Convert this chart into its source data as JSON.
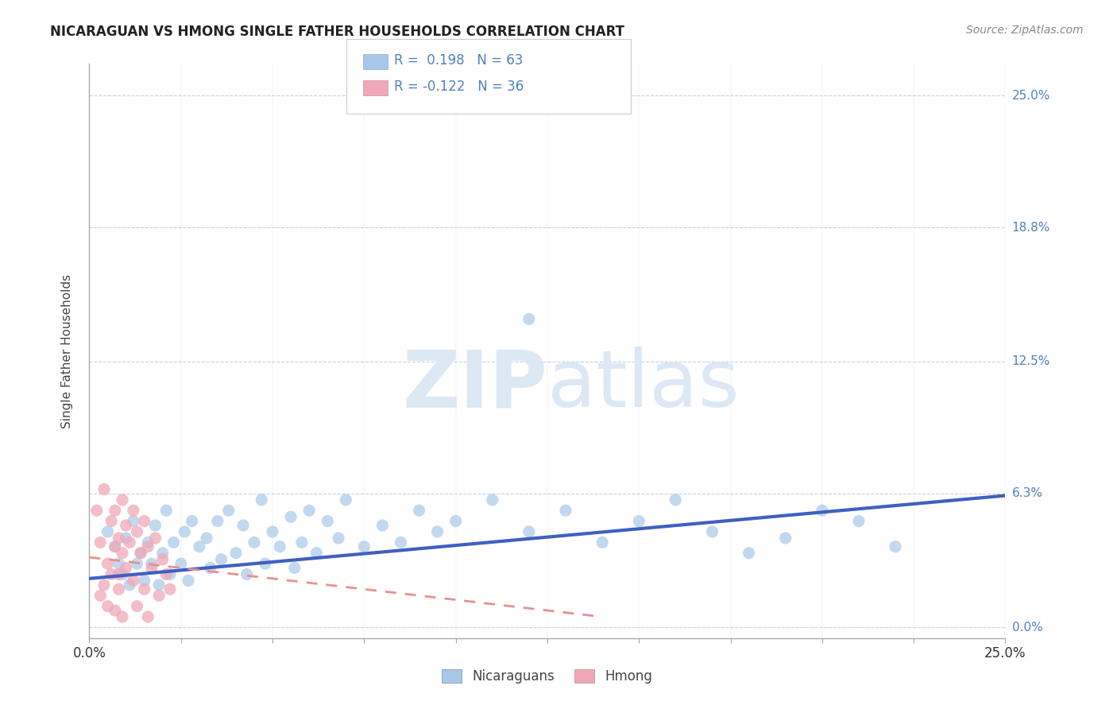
{
  "title": "NICARAGUAN VS HMONG SINGLE FATHER HOUSEHOLDS CORRELATION CHART",
  "source": "Source: ZipAtlas.com",
  "ylabel": "Single Father Households",
  "y_ticks": [
    0.0,
    0.063,
    0.125,
    0.188,
    0.25
  ],
  "y_tick_labels": [
    "0.0%",
    "6.3%",
    "12.5%",
    "18.8%",
    "25.0%"
  ],
  "x_range": [
    0.0,
    0.25
  ],
  "y_range": [
    -0.005,
    0.265
  ],
  "legend_R1": "0.198",
  "legend_N1": "63",
  "legend_R2": "-0.122",
  "legend_N2": "36",
  "legend_labels": [
    "Nicaraguans",
    "Hmong"
  ],
  "nicaraguan_color": "#a8c8e8",
  "hmong_color": "#f0a8b8",
  "nicaraguan_line_color": "#4060c0",
  "hmong_line_color": "#e89090",
  "background_color": "#ffffff",
  "grid_color": "#c8d0e0",
  "watermark_color": "#dde8f5",
  "title_color": "#222222",
  "source_color": "#888888",
  "tick_label_color": "#5080c0",
  "nic_line_x0": 0.0,
  "nic_line_y0": 0.023,
  "nic_line_x1": 0.25,
  "nic_line_y1": 0.062,
  "hmong_line_x0": 0.0,
  "hmong_line_y0": 0.033,
  "hmong_line_x1": 0.14,
  "hmong_line_y1": 0.005,
  "nic_points": [
    [
      0.005,
      0.045
    ],
    [
      0.007,
      0.038
    ],
    [
      0.008,
      0.03
    ],
    [
      0.009,
      0.025
    ],
    [
      0.01,
      0.042
    ],
    [
      0.011,
      0.02
    ],
    [
      0.012,
      0.05
    ],
    [
      0.013,
      0.03
    ],
    [
      0.014,
      0.035
    ],
    [
      0.015,
      0.022
    ],
    [
      0.016,
      0.04
    ],
    [
      0.017,
      0.03
    ],
    [
      0.018,
      0.048
    ],
    [
      0.019,
      0.02
    ],
    [
      0.02,
      0.035
    ],
    [
      0.021,
      0.055
    ],
    [
      0.022,
      0.025
    ],
    [
      0.023,
      0.04
    ],
    [
      0.025,
      0.03
    ],
    [
      0.026,
      0.045
    ],
    [
      0.027,
      0.022
    ],
    [
      0.028,
      0.05
    ],
    [
      0.03,
      0.038
    ],
    [
      0.032,
      0.042
    ],
    [
      0.033,
      0.028
    ],
    [
      0.035,
      0.05
    ],
    [
      0.036,
      0.032
    ],
    [
      0.038,
      0.055
    ],
    [
      0.04,
      0.035
    ],
    [
      0.042,
      0.048
    ],
    [
      0.043,
      0.025
    ],
    [
      0.045,
      0.04
    ],
    [
      0.047,
      0.06
    ],
    [
      0.048,
      0.03
    ],
    [
      0.05,
      0.045
    ],
    [
      0.052,
      0.038
    ],
    [
      0.055,
      0.052
    ],
    [
      0.056,
      0.028
    ],
    [
      0.058,
      0.04
    ],
    [
      0.06,
      0.055
    ],
    [
      0.062,
      0.035
    ],
    [
      0.065,
      0.05
    ],
    [
      0.068,
      0.042
    ],
    [
      0.07,
      0.06
    ],
    [
      0.075,
      0.038
    ],
    [
      0.08,
      0.048
    ],
    [
      0.085,
      0.04
    ],
    [
      0.09,
      0.055
    ],
    [
      0.095,
      0.045
    ],
    [
      0.1,
      0.05
    ],
    [
      0.11,
      0.06
    ],
    [
      0.12,
      0.045
    ],
    [
      0.13,
      0.055
    ],
    [
      0.14,
      0.04
    ],
    [
      0.15,
      0.05
    ],
    [
      0.16,
      0.06
    ],
    [
      0.17,
      0.045
    ],
    [
      0.18,
      0.035
    ],
    [
      0.19,
      0.042
    ],
    [
      0.2,
      0.055
    ],
    [
      0.21,
      0.05
    ],
    [
      0.12,
      0.145
    ],
    [
      0.22,
      0.038
    ]
  ],
  "hmong_points": [
    [
      0.002,
      0.055
    ],
    [
      0.003,
      0.04
    ],
    [
      0.004,
      0.065
    ],
    [
      0.005,
      0.03
    ],
    [
      0.006,
      0.05
    ],
    [
      0.007,
      0.038
    ],
    [
      0.007,
      0.055
    ],
    [
      0.008,
      0.042
    ],
    [
      0.008,
      0.025
    ],
    [
      0.009,
      0.06
    ],
    [
      0.009,
      0.035
    ],
    [
      0.01,
      0.048
    ],
    [
      0.01,
      0.028
    ],
    [
      0.011,
      0.04
    ],
    [
      0.012,
      0.055
    ],
    [
      0.012,
      0.022
    ],
    [
      0.013,
      0.045
    ],
    [
      0.013,
      0.01
    ],
    [
      0.014,
      0.035
    ],
    [
      0.015,
      0.05
    ],
    [
      0.015,
      0.018
    ],
    [
      0.016,
      0.038
    ],
    [
      0.016,
      0.005
    ],
    [
      0.017,
      0.028
    ],
    [
      0.018,
      0.042
    ],
    [
      0.019,
      0.015
    ],
    [
      0.02,
      0.032
    ],
    [
      0.021,
      0.025
    ],
    [
      0.022,
      0.018
    ],
    [
      0.003,
      0.015
    ],
    [
      0.004,
      0.02
    ],
    [
      0.005,
      0.01
    ],
    [
      0.006,
      0.025
    ],
    [
      0.007,
      0.008
    ],
    [
      0.008,
      0.018
    ],
    [
      0.009,
      0.005
    ]
  ]
}
